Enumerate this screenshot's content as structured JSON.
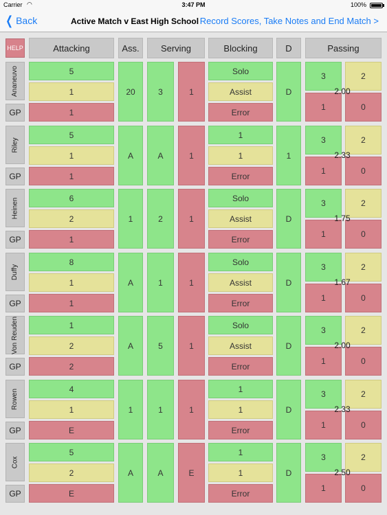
{
  "status": {
    "carrier": "Carrier",
    "time": "3:47 PM",
    "battery": "100%"
  },
  "nav": {
    "back": "Back",
    "title": "Active Match v East High School",
    "action": "Record Scores, Take Notes and End Match >"
  },
  "headers": {
    "help": "HELP",
    "attacking": "Attacking",
    "assists": "Ass.",
    "serving": "Serving",
    "blocking": "Blocking",
    "digs": "D",
    "passing": "Passing"
  },
  "gp_label": "GP",
  "players": [
    {
      "name": "Ananeuvo",
      "attack": [
        "5",
        "1",
        "1"
      ],
      "ass": "20",
      "serve": [
        "3",
        "1"
      ],
      "block": [
        "Solo",
        "Assist",
        "Error"
      ],
      "dig": "D",
      "pass": [
        "3",
        "2",
        "1",
        "0"
      ],
      "avg": "2.00"
    },
    {
      "name": "Riley",
      "attack": [
        "5",
        "1",
        "1"
      ],
      "ass": "A",
      "serve": [
        "A",
        "1"
      ],
      "block": [
        "1",
        "1",
        "Error"
      ],
      "dig": "1",
      "pass": [
        "3",
        "2",
        "1",
        "0"
      ],
      "avg": "2.33"
    },
    {
      "name": "Heinen",
      "attack": [
        "6",
        "2",
        "1"
      ],
      "ass": "1",
      "serve": [
        "2",
        "1"
      ],
      "block": [
        "Solo",
        "Assist",
        "Error"
      ],
      "dig": "D",
      "pass": [
        "3",
        "2",
        "1",
        "0"
      ],
      "avg": "1.75"
    },
    {
      "name": "Duffy",
      "attack": [
        "8",
        "1",
        "1"
      ],
      "ass": "A",
      "serve": [
        "1",
        "1"
      ],
      "block": [
        "Solo",
        "Assist",
        "Error"
      ],
      "dig": "D",
      "pass": [
        "3",
        "2",
        "1",
        "0"
      ],
      "avg": "1.67"
    },
    {
      "name": "Von Reuden",
      "attack": [
        "1",
        "2",
        "2"
      ],
      "ass": "A",
      "serve": [
        "5",
        "1"
      ],
      "block": [
        "Solo",
        "Assist",
        "Error"
      ],
      "dig": "D",
      "pass": [
        "3",
        "2",
        "1",
        "0"
      ],
      "avg": "2.00"
    },
    {
      "name": "Rowen",
      "attack": [
        "4",
        "1",
        "E"
      ],
      "ass": "1",
      "serve": [
        "1",
        "1"
      ],
      "block": [
        "1",
        "1",
        "Error"
      ],
      "dig": "D",
      "pass": [
        "3",
        "2",
        "1",
        "0"
      ],
      "avg": "2.33"
    },
    {
      "name": "Cox",
      "attack": [
        "5",
        "2",
        "E"
      ],
      "ass": "A",
      "serve": [
        "A",
        "E"
      ],
      "block": [
        "1",
        "1",
        "Error"
      ],
      "dig": "D",
      "pass": [
        "3",
        "2",
        "1",
        "0"
      ],
      "avg": "2.50"
    }
  ]
}
